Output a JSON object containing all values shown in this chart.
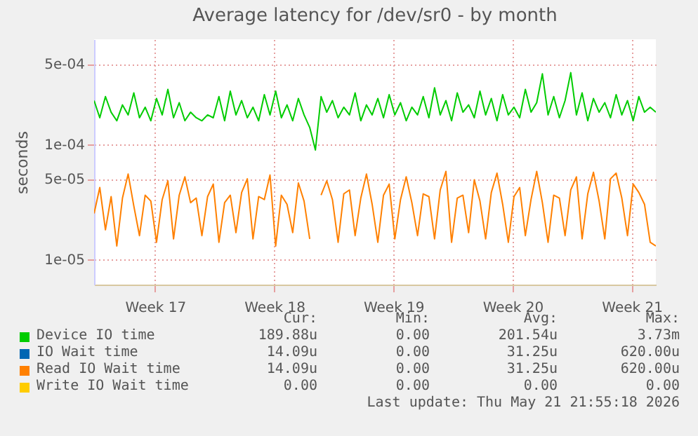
{
  "chart_data": {
    "type": "line",
    "title": "Average latency for /dev/sr0 - by month",
    "ylabel": "seconds",
    "log": true,
    "grid": true,
    "legend": "bottom",
    "x": [
      "2026-04-18T22:00",
      "2026-04-19T06:00",
      "2026-04-19T14:00",
      "2026-04-19T22:00",
      "2026-04-20T06:00",
      "2026-04-20T14:00",
      "2026-04-20T22:00",
      "2026-04-21T06:00",
      "2026-04-21T14:00",
      "2026-04-21T22:00",
      "2026-04-22T06:00",
      "2026-04-22T14:00",
      "2026-04-22T22:00",
      "2026-04-23T06:00",
      "2026-04-23T14:00",
      "2026-04-23T22:00",
      "2026-04-24T06:00",
      "2026-04-24T14:00",
      "2026-04-24T22:00",
      "2026-04-25T06:00",
      "2026-04-25T14:00",
      "2026-04-25T22:00",
      "2026-04-26T06:00",
      "2026-04-26T14:00",
      "2026-04-26T22:00",
      "2026-04-27T06:00",
      "2026-04-27T14:00",
      "2026-04-27T22:00",
      "2026-04-28T06:00",
      "2026-04-28T14:00",
      "2026-04-28T22:00",
      "2026-04-29T06:00",
      "2026-04-29T14:00",
      "2026-04-29T22:00",
      "2026-04-30T06:00",
      "2026-04-30T14:00",
      "2026-04-30T22:00",
      "2026-05-01T06:00",
      "2026-05-01T14:00",
      "2026-05-01T22:00",
      "2026-05-02T06:00",
      "2026-05-02T14:00",
      "2026-05-02T22:00",
      "2026-05-03T06:00",
      "2026-05-03T14:00",
      "2026-05-03T22:00",
      "2026-05-04T06:00",
      "2026-05-04T14:00",
      "2026-05-04T22:00",
      "2026-05-05T06:00",
      "2026-05-05T14:00",
      "2026-05-05T22:00",
      "2026-05-06T06:00",
      "2026-05-06T14:00",
      "2026-05-06T22:00",
      "2026-05-07T06:00",
      "2026-05-07T14:00",
      "2026-05-07T22:00",
      "2026-05-08T06:00",
      "2026-05-08T14:00",
      "2026-05-08T22:00",
      "2026-05-09T06:00",
      "2026-05-09T14:00",
      "2026-05-09T22:00",
      "2026-05-10T06:00",
      "2026-05-10T14:00",
      "2026-05-10T22:00",
      "2026-05-11T06:00",
      "2026-05-11T14:00",
      "2026-05-11T22:00",
      "2026-05-12T06:00",
      "2026-05-12T14:00",
      "2026-05-12T22:00",
      "2026-05-13T06:00",
      "2026-05-13T14:00",
      "2026-05-13T22:00",
      "2026-05-14T06:00",
      "2026-05-14T14:00",
      "2026-05-14T22:00",
      "2026-05-15T06:00",
      "2026-05-15T14:00",
      "2026-05-15T22:00",
      "2026-05-16T06:00",
      "2026-05-16T14:00",
      "2026-05-16T22:00",
      "2026-05-17T06:00",
      "2026-05-17T14:00",
      "2026-05-17T22:00",
      "2026-05-18T06:00",
      "2026-05-18T14:00",
      "2026-05-18T22:00",
      "2026-05-19T06:00",
      "2026-05-19T14:00",
      "2026-05-19T22:00",
      "2026-05-20T06:00",
      "2026-05-20T14:00",
      "2026-05-20T22:00",
      "2026-05-21T06:00",
      "2026-05-21T14:00",
      "2026-05-21T22:00"
    ],
    "xlim": [
      "2026-04-18T22:00",
      "2026-05-21T22:00"
    ],
    "xticks": [
      {
        "value": "2026-04-22T12:00",
        "label": "Week 17"
      },
      {
        "value": "2026-04-29T12:00",
        "label": "Week 18"
      },
      {
        "value": "2026-05-06T12:00",
        "label": "Week 19"
      },
      {
        "value": "2026-05-13T12:00",
        "label": "Week 20"
      },
      {
        "value": "2026-05-20T12:00",
        "label": "Week 21"
      }
    ],
    "ylim": [
      6e-06,
      0.00082
    ],
    "yticks": [
      {
        "value": 1e-05,
        "label": "1e-05"
      },
      {
        "value": 5e-05,
        "label": "5e-05"
      },
      {
        "value": 0.0001,
        "label": "1e-04"
      },
      {
        "value": 0.0005,
        "label": "5e-04"
      }
    ],
    "series": [
      {
        "name": "Device IO time",
        "color": "#00cc00",
        "values": [
          0.00024,
          0.00017,
          0.00026,
          0.00019,
          0.00016,
          0.00022,
          0.00018,
          0.00028,
          0.00017,
          0.00021,
          0.00016,
          0.00025,
          0.00018,
          0.0003,
          0.00017,
          0.00023,
          0.00016,
          0.00019,
          0.00017,
          0.00016,
          0.00018,
          0.00017,
          0.00026,
          0.00016,
          0.00029,
          0.00018,
          0.00024,
          0.00017,
          0.00021,
          0.00016,
          0.00027,
          0.00018,
          0.00029,
          0.00017,
          0.00022,
          0.00016,
          0.00025,
          0.00018,
          0.00014,
          8.9e-05,
          0.00026,
          0.00019,
          0.00024,
          0.00017,
          0.00021,
          0.00018,
          0.00028,
          0.00016,
          0.00022,
          0.00018,
          0.00025,
          0.00017,
          0.00027,
          0.00018,
          0.00023,
          0.00016,
          0.00021,
          0.00018,
          0.00026,
          0.00017,
          0.00031,
          0.00018,
          0.00024,
          0.00016,
          0.00028,
          0.00019,
          0.00022,
          0.00017,
          0.00029,
          0.00018,
          0.00025,
          0.00016,
          0.00027,
          0.00018,
          0.00021,
          0.00017,
          0.0003,
          0.00019,
          0.00023,
          0.00041,
          0.00018,
          0.00026,
          0.00017,
          0.00024,
          0.00042,
          0.00018,
          0.00028,
          0.00016,
          0.00025,
          0.00019,
          0.00023,
          0.00017,
          0.00027,
          0.00018,
          0.00024,
          0.00016,
          0.00026,
          0.00019,
          0.00021,
          0.00019
        ]
      },
      {
        "name": "IO Wait time",
        "color": "#0066b3",
        "values": [
          null,
          null,
          null,
          null,
          null,
          null,
          null,
          null,
          null,
          null,
          null,
          null,
          null,
          null,
          null,
          null,
          null,
          null,
          null,
          null,
          null,
          null,
          null,
          null,
          null,
          null,
          null,
          null,
          null,
          null,
          null,
          null,
          null,
          null,
          null,
          null,
          null,
          null,
          null,
          null,
          null,
          null,
          null,
          null,
          null,
          null,
          null,
          null,
          null,
          null,
          null,
          null,
          null,
          null,
          null,
          null,
          null,
          null,
          null,
          null,
          null,
          null,
          null,
          null,
          null,
          null,
          null,
          null,
          null,
          null,
          null,
          null,
          null,
          null,
          null,
          null,
          null,
          null,
          null,
          null,
          null,
          null,
          null,
          null,
          null,
          null,
          null,
          null,
          null,
          null,
          null,
          null,
          null,
          null,
          null,
          null,
          null,
          null,
          null,
          null
        ]
      },
      {
        "name": "Read IO Wait time",
        "color": "#ff8000",
        "values": [
          2.5e-05,
          4.2e-05,
          1.8e-05,
          3.5e-05,
          1.3e-05,
          3.4e-05,
          5.5e-05,
          2.9e-05,
          1.6e-05,
          3.6e-05,
          3.2e-05,
          1.4e-05,
          3.3e-05,
          4.8e-05,
          1.5e-05,
          3.6e-05,
          5.2e-05,
          3.1e-05,
          3.4e-05,
          1.6e-05,
          3.5e-05,
          4.5e-05,
          1.4e-05,
          3.1e-05,
          3.6e-05,
          1.7e-05,
          3.8e-05,
          5e-05,
          1.5e-05,
          3.5e-05,
          3.3e-05,
          5.4e-05,
          1.3e-05,
          3.6e-05,
          3e-05,
          1.7e-05,
          4.6e-05,
          3.2e-05,
          1.5e-05,
          null,
          3.6e-05,
          4.8e-05,
          3.3e-05,
          1.4e-05,
          3.7e-05,
          4e-05,
          1.6e-05,
          3.4e-05,
          5.5e-05,
          3e-05,
          1.4e-05,
          3.6e-05,
          4.5e-05,
          1.5e-05,
          3.3e-05,
          5.2e-05,
          3.1e-05,
          1.6e-05,
          3.7e-05,
          3.5e-05,
          1.5e-05,
          4e-05,
          5.8e-05,
          1.4e-05,
          3.4e-05,
          3.6e-05,
          1.7e-05,
          4.9e-05,
          3.2e-05,
          1.5e-05,
          3.8e-05,
          5.6e-05,
          3e-05,
          1.4e-05,
          3.5e-05,
          4.2e-05,
          1.6e-05,
          3.3e-05,
          5.8e-05,
          3.1e-05,
          1.4e-05,
          3.6e-05,
          3.4e-05,
          1.6e-05,
          4e-05,
          5.2e-05,
          1.5e-05,
          3.7e-05,
          5.7e-05,
          3.2e-05,
          1.5e-05,
          5e-05,
          5.6e-05,
          3.4e-05,
          1.6e-05,
          4.5e-05,
          3.8e-05,
          3e-05,
          1.4e-05,
          1.3e-05
        ]
      },
      {
        "name": "Write IO Wait time",
        "color": "#ffcc00",
        "values": [
          null,
          null,
          null,
          null,
          null,
          null,
          null,
          null,
          null,
          null,
          null,
          null,
          null,
          null,
          null,
          null,
          null,
          null,
          null,
          null,
          null,
          null,
          null,
          null,
          null,
          null,
          null,
          null,
          null,
          null,
          null,
          null,
          null,
          null,
          null,
          null,
          null,
          null,
          null,
          null,
          null,
          null,
          null,
          null,
          null,
          null,
          null,
          null,
          null,
          null,
          null,
          null,
          null,
          null,
          null,
          null,
          null,
          null,
          null,
          null,
          null,
          null,
          null,
          null,
          null,
          null,
          null,
          null,
          null,
          null,
          null,
          null,
          null,
          null,
          null,
          null,
          null,
          null,
          null,
          null,
          null,
          null,
          null,
          null,
          null,
          null,
          null,
          null,
          null,
          null,
          null,
          null,
          null,
          null,
          null,
          null,
          null,
          null,
          null,
          null
        ]
      }
    ],
    "annotations": [
      "Cur:",
      "Min:",
      "Avg:",
      "Max:",
      "189.88u",
      "0.00",
      "201.54u",
      "3.73m",
      "14.09u",
      "0.00",
      "31.25u",
      "620.00u",
      "14.09u",
      "0.00",
      "31.25u",
      "620.00u",
      "0.00",
      "0.00",
      "0.00",
      "0.00",
      "Last update: Thu May 21 21:55:18 2026"
    ]
  }
}
